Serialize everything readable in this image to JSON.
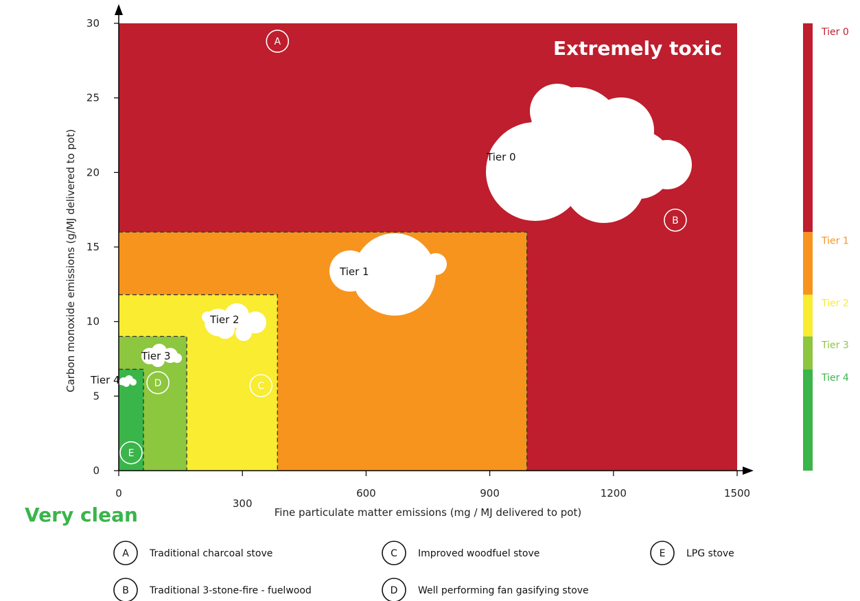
{
  "chart_data": {
    "type": "area",
    "xlabel": "Fine particulate matter emissions (mg / MJ delivered to pot)",
    "ylabel": "Carbon monoxide emissions (g/MJ delivered to pot)",
    "xlim": [
      0,
      1500
    ],
    "ylim": [
      0,
      30
    ],
    "x_ticks": [
      {
        "label": "0",
        "value": 0
      },
      {
        "label": "300",
        "value": 300
      },
      {
        "label": "600",
        "value": 600
      },
      {
        "label": "900",
        "value": 900
      },
      {
        "label": "1200",
        "value": 1200
      },
      {
        "label": "1500",
        "value": 1500
      }
    ],
    "y_ticks": [
      {
        "label": "0",
        "value": 0
      },
      {
        "label": "5",
        "value": 5
      },
      {
        "label": "10",
        "value": 10
      },
      {
        "label": "15",
        "value": 15
      },
      {
        "label": "20",
        "value": 20
      },
      {
        "label": "25",
        "value": 25
      },
      {
        "label": "30",
        "value": 30
      }
    ],
    "regions": [
      {
        "name": "Tier 0",
        "x_max": 1500,
        "y_max": 30,
        "color": "#be1e2d"
      },
      {
        "name": "Tier 1",
        "x_max": 990,
        "y_max": 16,
        "color": "#f7941d"
      },
      {
        "name": "Tier 2",
        "x_max": 385,
        "y_max": 11.8,
        "color": "#f9ec31"
      },
      {
        "name": "Tier 3",
        "x_max": 165,
        "y_max": 9,
        "color": "#8dc63f"
      },
      {
        "name": "Tier 4",
        "x_max": 60,
        "y_max": 6.8,
        "color": "#39b54a"
      }
    ],
    "points": [
      {
        "letter": "A",
        "x": 385,
        "y": 28.8,
        "label": "Traditional charcoal stove"
      },
      {
        "letter": "B",
        "x": 1350,
        "y": 16.8,
        "label": "Traditional 3-stone-fire - fuelwood"
      },
      {
        "letter": "C",
        "x": 345,
        "y": 5.7,
        "label": "Improved woodfuel stove"
      },
      {
        "letter": "D",
        "x": 95,
        "y": 5.9,
        "label": "Well performing fan gasifying stove"
      },
      {
        "letter": "E",
        "x": 30,
        "y": 1.2,
        "label": "LPG stove"
      }
    ],
    "annotations": {
      "top": "Extremely toxic",
      "bottom": "Very clean"
    },
    "colorbar": [
      {
        "name": "Tier 0",
        "color": "#be1e2d",
        "from": 16,
        "to": 30
      },
      {
        "name": "Tier 1",
        "color": "#f7941d",
        "from": 11.8,
        "to": 16
      },
      {
        "name": "Tier 2",
        "color": "#f9ec31",
        "from": 9,
        "to": 11.8
      },
      {
        "name": "Tier 3",
        "color": "#8dc63f",
        "from": 6.8,
        "to": 9
      },
      {
        "name": "Tier 4",
        "color": "#39b54a",
        "from": 0,
        "to": 6.8
      }
    ]
  }
}
